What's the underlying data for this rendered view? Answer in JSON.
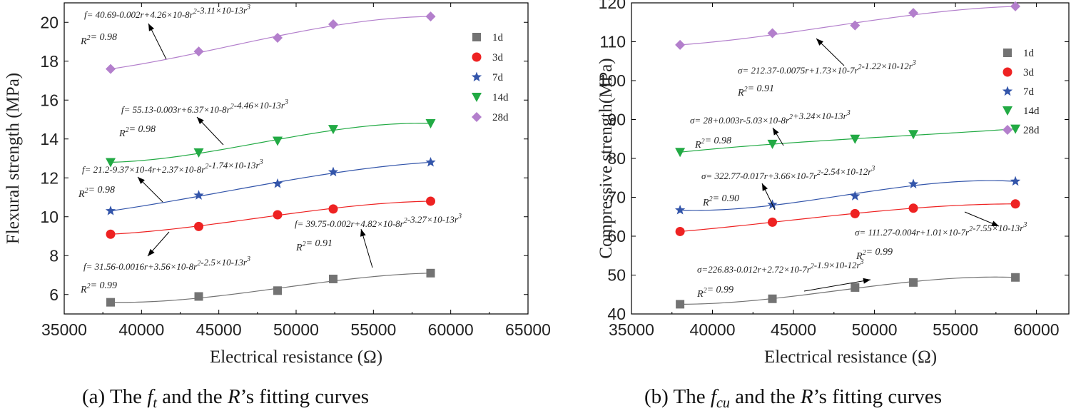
{
  "chart_data": [
    {
      "type": "scatter",
      "panel": "a",
      "caption": "(a) The  ft and the R’s fitting curves",
      "caption_parts": {
        "prefix": "(a) The ",
        "symbol": "f",
        "subscript": "t",
        "middle": " and the ",
        "var": "R",
        "suffix": "’s fitting curves"
      },
      "xlabel": "Electrical resistance (Ω)",
      "ylabel": "Flexural strength (MPa)",
      "xlim": [
        35000,
        65000
      ],
      "ylim": [
        5,
        21
      ],
      "xticks": [
        35000,
        40000,
        45000,
        50000,
        55000,
        60000,
        65000
      ],
      "yticks": [
        6,
        8,
        10,
        12,
        14,
        16,
        18,
        20
      ],
      "x": [
        38000,
        43700,
        48800,
        52400,
        58700
      ],
      "legend_position": "top-right",
      "series": [
        {
          "name": "1d",
          "color": "#737373",
          "marker": "square",
          "values": [
            5.6,
            5.9,
            6.2,
            6.8,
            7.1
          ],
          "equation": "f= 39.75-0.002r+4.82×10-8r2-3.27×10-13r3",
          "r2": "R2= 0.91",
          "coef": [
            39.75,
            -0.002,
            4.82e-08,
            -3.27e-13
          ]
        },
        {
          "name": "3d",
          "color": "#ee2222",
          "marker": "circle",
          "values": [
            9.1,
            9.5,
            10.1,
            10.4,
            10.8
          ],
          "equation": "f= 31.56-0.0016r+3.56×10-8r2-2.5×10-13r3",
          "r2": "R2= 0.99",
          "coef": [
            31.56,
            -0.0016,
            3.56e-08,
            -2.5e-13
          ]
        },
        {
          "name": "7d",
          "color": "#3355aa",
          "marker": "star",
          "values": [
            10.3,
            11.1,
            11.7,
            12.3,
            12.8
          ],
          "equation": "f= 21.2-9.37×10-4r+2.37×10-8r2-1.74×10-13r3",
          "r2": "R2= 0.98",
          "coef": [
            21.2,
            -0.000937,
            2.37e-08,
            -1.74e-13
          ]
        },
        {
          "name": "14d",
          "color": "#22aa44",
          "marker": "triangle-down",
          "values": [
            12.8,
            13.3,
            13.9,
            14.5,
            14.8
          ],
          "equation": "f= 55.13-0.003r+6.37×10-8r2-4.46×10-13r3",
          "r2": "R2= 0.98",
          "coef": [
            55.13,
            -0.003,
            6.37e-08,
            -4.46e-13
          ]
        },
        {
          "name": "28d",
          "color": "#b37fcc",
          "marker": "diamond",
          "values": [
            17.6,
            18.5,
            19.2,
            19.9,
            20.3
          ],
          "equation": "f= 40.69-0.002r+4.26×10-8r2-3.11×10-13r3",
          "r2": "R2= 0.98",
          "coef": [
            40.69,
            -0.002,
            4.26e-08,
            -3.11e-13
          ]
        }
      ]
    },
    {
      "type": "scatter",
      "panel": "b",
      "caption": "(b) The fcu and the R’s fitting curves",
      "caption_parts": {
        "prefix": "(b) The ",
        "symbol": "f",
        "subscript": "cu",
        "middle": " and the ",
        "var": "R",
        "suffix": "’s fitting curves"
      },
      "xlabel": "Electrical resistance (Ω)",
      "ylabel": "Compressive strength(MPa)",
      "xlim": [
        35000,
        62000
      ],
      "ylim": [
        40,
        120
      ],
      "xticks": [
        35000,
        40000,
        45000,
        50000,
        55000,
        60000
      ],
      "yticks": [
        40,
        50,
        60,
        70,
        80,
        90,
        100,
        110,
        120
      ],
      "x": [
        38000,
        43700,
        48800,
        52400,
        58700
      ],
      "legend_position": "top-right",
      "series": [
        {
          "name": "1d",
          "color": "#737373",
          "marker": "square",
          "values": [
            42.5,
            43.9,
            46.8,
            48.1,
            49.4
          ],
          "equation": "σ=226.83-0.012r+2.72×10-7r2-1.9×10-12r3",
          "r2": "R2= 0.99",
          "coef": [
            226.83,
            -0.012,
            2.72e-07,
            -1.9e-12
          ]
        },
        {
          "name": "3d",
          "color": "#ee2222",
          "marker": "circle",
          "values": [
            61.2,
            63.6,
            65.8,
            67.2,
            68.3
          ],
          "equation": "σ= 111.27-0.004r+1.01×10-7r2-7.55×10-13r3",
          "r2": "R2= 0.99",
          "coef": [
            111.27,
            -0.004,
            1.01e-07,
            -7.55e-13
          ]
        },
        {
          "name": "7d",
          "color": "#3355aa",
          "marker": "star",
          "values": [
            66.7,
            68.1,
            70.3,
            73.4,
            74.1
          ],
          "equation": "σ= 322.77-0.017r+3.66×10-7r2-2.54×10-12r3",
          "r2": "R2= 0.90",
          "coef": [
            322.77,
            -0.017,
            3.66e-07,
            -2.54e-12
          ]
        },
        {
          "name": "14d",
          "color": "#22aa44",
          "marker": "triangle-down",
          "values": [
            81.6,
            83.7,
            85.0,
            86.2,
            87.6
          ],
          "equation": "σ= 28+0.003r-5.03×10-8r2+3.24×10-13r3",
          "r2": "R2= 0.98",
          "coef": [
            28,
            0.003,
            -5.03e-08,
            3.24e-13
          ]
        },
        {
          "name": "28d",
          "color": "#b37fcc",
          "marker": "diamond",
          "values": [
            109.2,
            112.2,
            114.2,
            117.4,
            119.1
          ],
          "equation": "σ= 212.37-0.0075r+1.73×10-7r2-1.22×10-12r3",
          "r2": "R2= 0.91",
          "coef": [
            212.37,
            -0.0075,
            1.73e-07,
            -1.22e-12
          ]
        }
      ]
    }
  ]
}
